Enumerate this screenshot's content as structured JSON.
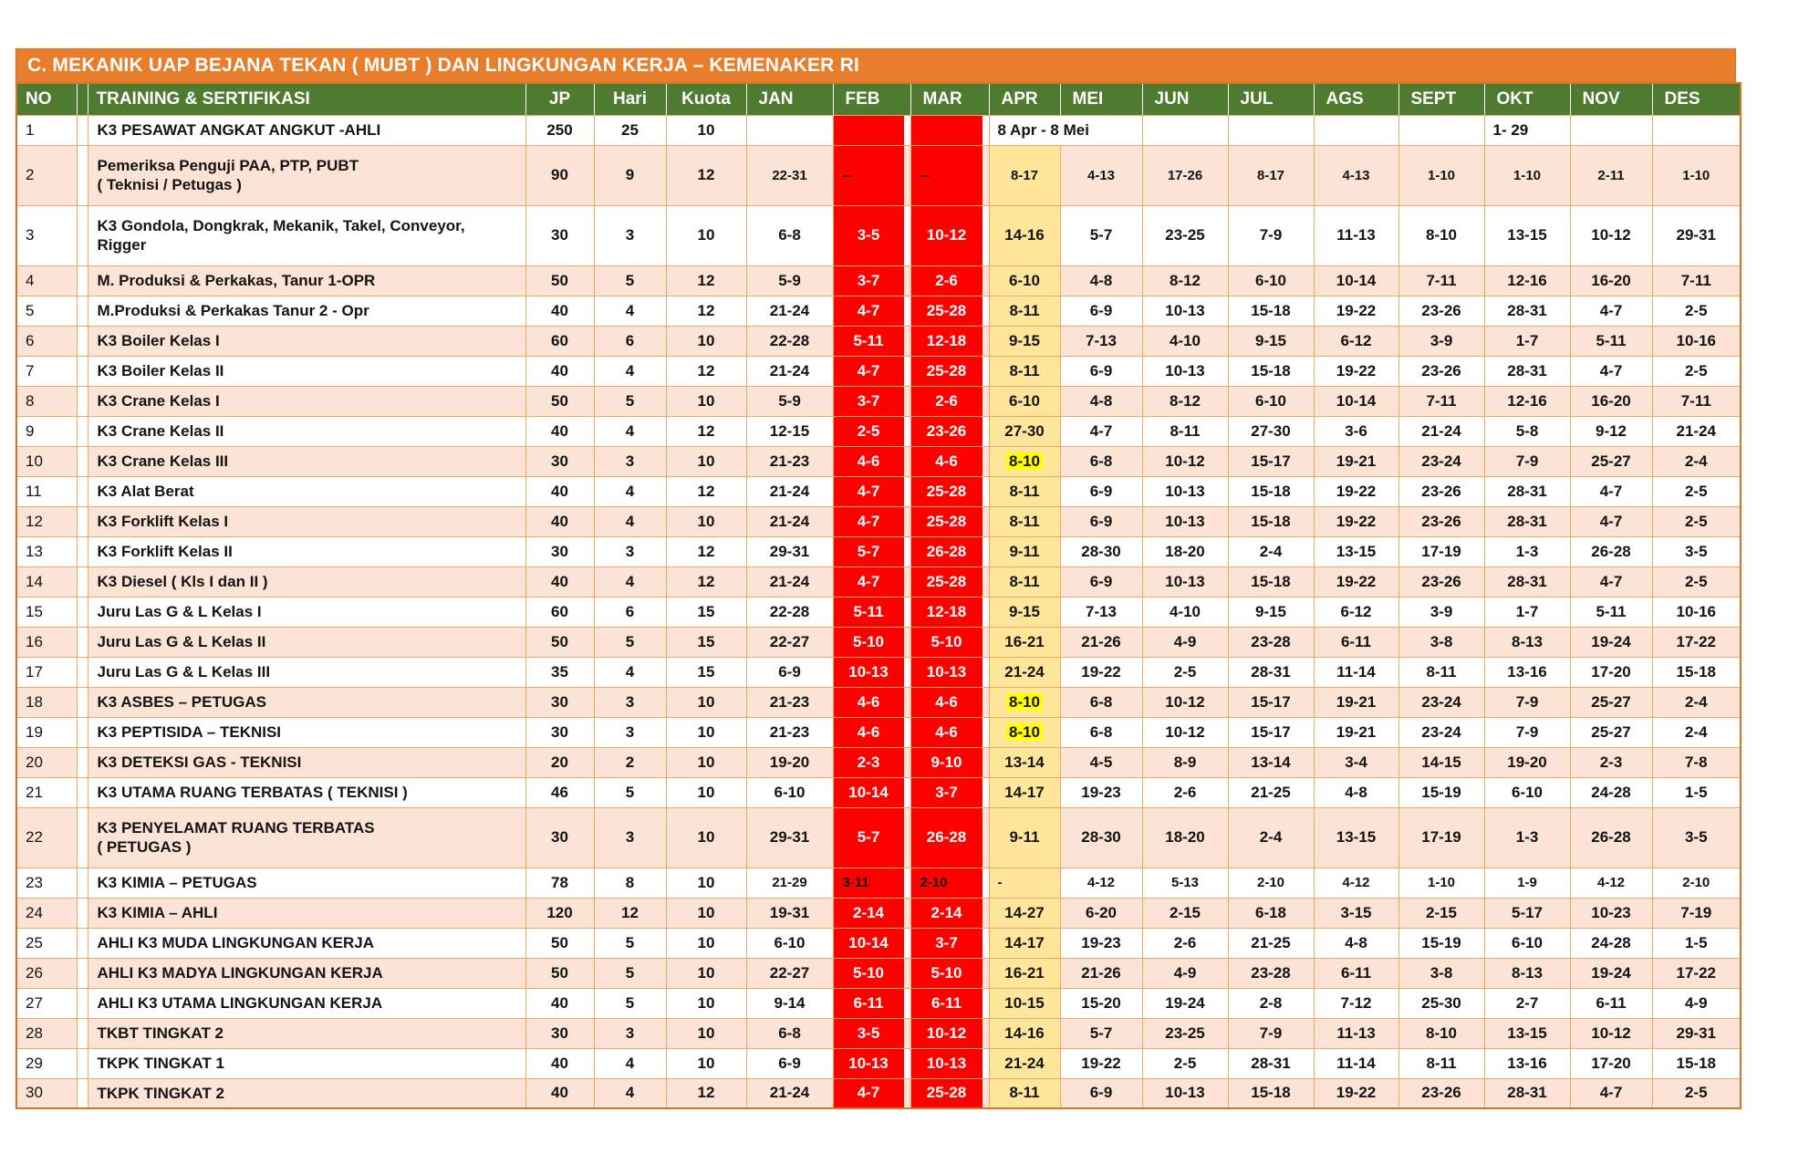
{
  "title": "C. MEKANIK UAP BEJANA TEKAN ( MUBT ) DAN LINGKUNGAN KERJA – KEMENAKER RI",
  "columns": [
    "NO",
    "TRAINING & SERTIFIKASI",
    "JP",
    "Hari",
    "Kuota"
  ],
  "months": [
    "JAN",
    "FEB",
    "MAR",
    "APR",
    "MEI",
    "JUN",
    "JUL",
    "AGS",
    "SEPT",
    "OKT",
    "NOV",
    "DES"
  ],
  "colors": {
    "title_bg": "#E87E2C",
    "header_bg": "#4F7B30",
    "red": "#FE0000",
    "stripe": "#FBE3D5",
    "apr_bg": "#FFE69B",
    "highlight": "#FFFF00",
    "border": "#EFA765",
    "outer": "#DD7321"
  },
  "rows": [
    {
      "no": "1",
      "name": "K3 PESAWAT ANGKAT ANGKUT -AHLI",
      "jp": "250",
      "hari": "25",
      "kuota": "10",
      "cells": [
        "",
        {
          "v": "",
          "bg": "red"
        },
        {
          "v": "",
          "bg": "red"
        },
        {
          "v": "8 Apr - 8 Mei",
          "colspan": 2,
          "bg": "white",
          "align": "left"
        },
        "",
        "",
        "",
        "",
        {
          "v": "1- 29",
          "align": "left"
        },
        "",
        ""
      ]
    },
    {
      "no": "2",
      "name": "Pemeriksa Penguji PAA, PTP, PUBT",
      "name2": "( Teknisi / Petugas )",
      "jp": "90",
      "hari": "9",
      "kuota": "12",
      "sm": true,
      "cells": [
        "22-31",
        {
          "v": "--",
          "bg": "red",
          "fg": "black"
        },
        {
          "v": "--",
          "bg": "red",
          "fg": "black"
        },
        "8-17",
        "4-13",
        "17-26",
        "8-17",
        "4-13",
        "1-10",
        "1-10",
        "2-11",
        "1-10"
      ]
    },
    {
      "no": "3",
      "name": "K3 Gondola, Dongkrak, Mekanik, Takel, Conveyor,",
      "name2": "Rigger",
      "jp": "30",
      "hari": "3",
      "kuota": "10",
      "cells": [
        "6-8",
        {
          "v": "3-5",
          "bg": "red"
        },
        {
          "v": "10-12",
          "bg": "red"
        },
        "14-16",
        "5-7",
        "23-25",
        "7-9",
        "11-13",
        "8-10",
        "13-15",
        "10-12",
        "29-31"
      ]
    },
    {
      "no": "4",
      "name": "M. Produksi & Perkakas, Tanur 1-OPR",
      "jp": "50",
      "hari": "5",
      "kuota": "12",
      "cells": [
        "5-9",
        {
          "v": "3-7",
          "bg": "red"
        },
        {
          "v": "2-6",
          "bg": "red"
        },
        "6-10",
        "4-8",
        "8-12",
        "6-10",
        "10-14",
        "7-11",
        "12-16",
        "16-20",
        "7-11"
      ]
    },
    {
      "no": "5",
      "name": "M.Produksi & Perkakas Tanur 2 - Opr",
      "jp": "40",
      "hari": "4",
      "kuota": "12",
      "cells": [
        "21-24",
        {
          "v": "4-7",
          "bg": "red"
        },
        {
          "v": "25-28",
          "bg": "red"
        },
        "8-11",
        "6-9",
        "10-13",
        "15-18",
        "19-22",
        "23-26",
        "28-31",
        "4-7",
        "2-5"
      ]
    },
    {
      "no": "6",
      "name": "K3 Boiler Kelas I",
      "jp": "60",
      "hari": "6",
      "kuota": "10",
      "cells": [
        "22-28",
        {
          "v": "5-11",
          "bg": "red"
        },
        {
          "v": "12-18",
          "bg": "red"
        },
        "9-15",
        "7-13",
        "4-10",
        "9-15",
        "6-12",
        "3-9",
        "1-7",
        "5-11",
        "10-16"
      ]
    },
    {
      "no": "7",
      "name": "K3 Boiler Kelas II",
      "jp": "40",
      "hari": "4",
      "kuota": "12",
      "cells": [
        "21-24",
        {
          "v": "4-7",
          "bg": "red"
        },
        {
          "v": "25-28",
          "bg": "red"
        },
        "8-11",
        "6-9",
        "10-13",
        "15-18",
        "19-22",
        "23-26",
        "28-31",
        "4-7",
        "2-5"
      ]
    },
    {
      "no": "8",
      "name": "K3 Crane Kelas I",
      "jp": "50",
      "hari": "5",
      "kuota": "10",
      "cells": [
        "5-9",
        {
          "v": "3-7",
          "bg": "red"
        },
        {
          "v": "2-6",
          "bg": "red"
        },
        "6-10",
        "4-8",
        "8-12",
        "6-10",
        "10-14",
        "7-11",
        "12-16",
        "16-20",
        "7-11"
      ]
    },
    {
      "no": "9",
      "name": "K3 Crane Kelas II",
      "jp": "40",
      "hari": "4",
      "kuota": "12",
      "cells": [
        "12-15",
        {
          "v": "2-5",
          "bg": "red"
        },
        {
          "v": "23-26",
          "bg": "red"
        },
        "27-30",
        "4-7",
        "8-11",
        "27-30",
        "3-6",
        "21-24",
        "5-8",
        "9-12",
        "21-24"
      ]
    },
    {
      "no": "10",
      "name": "K3 Crane Kelas III",
      "jp": "30",
      "hari": "3",
      "kuota": "10",
      "cells": [
        "21-23",
        {
          "v": "4-6",
          "bg": "red"
        },
        {
          "v": "4-6",
          "bg": "red"
        },
        {
          "v": "8-10",
          "hl": true
        },
        "6-8",
        "10-12",
        "15-17",
        "19-21",
        "23-24",
        "7-9",
        "25-27",
        "2-4"
      ]
    },
    {
      "no": "11",
      "name": "K3 Alat Berat",
      "jp": "40",
      "hari": "4",
      "kuota": "12",
      "cells": [
        "21-24",
        {
          "v": "4-7",
          "bg": "red"
        },
        {
          "v": "25-28",
          "bg": "red"
        },
        "8-11",
        "6-9",
        "10-13",
        "15-18",
        "19-22",
        "23-26",
        "28-31",
        "4-7",
        "2-5"
      ]
    },
    {
      "no": "12",
      "name": "K3 Forklift Kelas I",
      "jp": "40",
      "hari": "4",
      "kuota": "10",
      "cells": [
        "21-24",
        {
          "v": "4-7",
          "bg": "red"
        },
        {
          "v": "25-28",
          "bg": "red"
        },
        "8-11",
        "6-9",
        "10-13",
        "15-18",
        "19-22",
        "23-26",
        "28-31",
        "4-7",
        "2-5"
      ]
    },
    {
      "no": "13",
      "name": "K3 Forklift Kelas II",
      "jp": "30",
      "hari": "3",
      "kuota": "12",
      "cells": [
        "29-31",
        {
          "v": "5-7",
          "bg": "red"
        },
        {
          "v": "26-28",
          "bg": "red"
        },
        "9-11",
        "28-30",
        "18-20",
        "2-4",
        "13-15",
        "17-19",
        "1-3",
        "26-28",
        "3-5"
      ]
    },
    {
      "no": "14",
      "name": "K3 Diesel ( Kls I dan II )",
      "jp": "40",
      "hari": "4",
      "kuota": "12",
      "cells": [
        "21-24",
        {
          "v": "4-7",
          "bg": "red"
        },
        {
          "v": "25-28",
          "bg": "red"
        },
        "8-11",
        "6-9",
        "10-13",
        "15-18",
        "19-22",
        "23-26",
        "28-31",
        "4-7",
        "2-5"
      ]
    },
    {
      "no": "15",
      "name": "Juru Las G & L Kelas I",
      "jp": "60",
      "hari": "6",
      "kuota": "15",
      "cells": [
        "22-28",
        {
          "v": "5-11",
          "bg": "red"
        },
        {
          "v": "12-18",
          "bg": "red"
        },
        "9-15",
        "7-13",
        "4-10",
        "9-15",
        "6-12",
        "3-9",
        "1-7",
        "5-11",
        "10-16"
      ]
    },
    {
      "no": "16",
      "name": "Juru Las G & L Kelas II",
      "jp": "50",
      "hari": "5",
      "kuota": "15",
      "cells": [
        "22-27",
        {
          "v": "5-10",
          "bg": "red"
        },
        {
          "v": "5-10",
          "bg": "red"
        },
        "16-21",
        "21-26",
        "4-9",
        "23-28",
        "6-11",
        "3-8",
        "8-13",
        "19-24",
        "17-22"
      ]
    },
    {
      "no": "17",
      "name": "Juru Las G & L Kelas III",
      "jp": "35",
      "hari": "4",
      "kuota": "15",
      "cells": [
        "6-9",
        {
          "v": "10-13",
          "bg": "red"
        },
        {
          "v": "10-13",
          "bg": "red"
        },
        "21-24",
        "19-22",
        "2-5",
        "28-31",
        "11-14",
        "8-11",
        "13-16",
        "17-20",
        "15-18"
      ]
    },
    {
      "no": "18",
      "name": "K3 ASBES – PETUGAS",
      "jp": "30",
      "hari": "3",
      "kuota": "10",
      "cells": [
        "21-23",
        {
          "v": "4-6",
          "bg": "red"
        },
        {
          "v": "4-6",
          "bg": "red"
        },
        {
          "v": "8-10",
          "hl": true
        },
        "6-8",
        "10-12",
        "15-17",
        "19-21",
        "23-24",
        "7-9",
        "25-27",
        "2-4"
      ]
    },
    {
      "no": "19",
      "name": "K3 PEPTISIDA – TEKNISI",
      "jp": "30",
      "hari": "3",
      "kuota": "10",
      "cells": [
        "21-23",
        {
          "v": "4-6",
          "bg": "red"
        },
        {
          "v": "4-6",
          "bg": "red"
        },
        {
          "v": "8-10",
          "hl": true
        },
        "6-8",
        "10-12",
        "15-17",
        "19-21",
        "23-24",
        "7-9",
        "25-27",
        "2-4"
      ]
    },
    {
      "no": "20",
      "name": "K3 DETEKSI GAS - TEKNISI",
      "jp": "20",
      "hari": "2",
      "kuota": "10",
      "cells": [
        "19-20",
        {
          "v": "2-3",
          "bg": "red"
        },
        {
          "v": "9-10",
          "bg": "red"
        },
        "13-14",
        "4-5",
        "8-9",
        "13-14",
        "3-4",
        "14-15",
        "19-20",
        "2-3",
        "7-8"
      ]
    },
    {
      "no": "21",
      "name": "K3 UTAMA RUANG TERBATAS ( TEKNISI )",
      "jp": "46",
      "hari": "5",
      "kuota": "10",
      "cells": [
        "6-10",
        {
          "v": "10-14",
          "bg": "red"
        },
        {
          "v": "3-7",
          "bg": "red"
        },
        "14-17",
        "19-23",
        "2-6",
        "21-25",
        "4-8",
        "15-19",
        "6-10",
        "24-28",
        "1-5"
      ]
    },
    {
      "no": "22",
      "name": "K3 PENYELAMAT RUANG TERBATAS",
      "name2": "( PETUGAS )",
      "jp": "30",
      "hari": "3",
      "kuota": "10",
      "cells": [
        "29-31",
        {
          "v": "5-7",
          "bg": "red"
        },
        {
          "v": "26-28",
          "bg": "red"
        },
        "9-11",
        "28-30",
        "18-20",
        "2-4",
        "13-15",
        "17-19",
        "1-3",
        "26-28",
        "3-5"
      ]
    },
    {
      "no": "23",
      "name": "K3 KIMIA – PETUGAS",
      "jp": "78",
      "hari": "8",
      "kuota": "10",
      "sm": true,
      "cells": [
        "21-29",
        {
          "v": "3-11",
          "bg": "red",
          "fg": "black"
        },
        {
          "v": "2-10",
          "bg": "red",
          "fg": "black"
        },
        {
          "v": "-",
          "align": "left"
        },
        "4-12",
        "5-13",
        "2-10",
        "4-12",
        "1-10",
        "1-9",
        "4-12",
        "2-10"
      ]
    },
    {
      "no": "24",
      "name": "K3 KIMIA – AHLI",
      "jp": "120",
      "hari": "12",
      "kuota": "10",
      "cells": [
        "19-31",
        {
          "v": "2-14",
          "bg": "red"
        },
        {
          "v": "2-14",
          "bg": "red"
        },
        "14-27",
        "6-20",
        "2-15",
        "6-18",
        "3-15",
        "2-15",
        "5-17",
        "10-23",
        "7-19"
      ]
    },
    {
      "no": "25",
      "name": "AHLI K3 MUDA LINGKUNGAN KERJA",
      "jp": "50",
      "hari": "5",
      "kuota": "10",
      "cells": [
        "6-10",
        {
          "v": "10-14",
          "bg": "red"
        },
        {
          "v": "3-7",
          "bg": "red"
        },
        "14-17",
        "19-23",
        "2-6",
        "21-25",
        "4-8",
        "15-19",
        "6-10",
        "24-28",
        "1-5"
      ]
    },
    {
      "no": "26",
      "name": "AHLI K3 MADYA LINGKUNGAN KERJA",
      "jp": "50",
      "hari": "5",
      "kuota": "10",
      "cells": [
        "22-27",
        {
          "v": "5-10",
          "bg": "red"
        },
        {
          "v": "5-10",
          "bg": "red"
        },
        "16-21",
        "21-26",
        "4-9",
        "23-28",
        "6-11",
        "3-8",
        "8-13",
        "19-24",
        "17-22"
      ]
    },
    {
      "no": "27",
      "name": "AHLI K3 UTAMA LINGKUNGAN KERJA",
      "jp": "40",
      "hari": "5",
      "kuota": "10",
      "cells": [
        "9-14",
        {
          "v": "6-11",
          "bg": "red"
        },
        {
          "v": "6-11",
          "bg": "red"
        },
        "10-15",
        "15-20",
        "19-24",
        "2-8",
        "7-12",
        "25-30",
        "2-7",
        "6-11",
        "4-9"
      ]
    },
    {
      "no": "28",
      "name": "TKBT TINGKAT 2",
      "jp": "30",
      "hari": "3",
      "kuota": "10",
      "cells": [
        "6-8",
        {
          "v": "3-5",
          "bg": "red"
        },
        {
          "v": "10-12",
          "bg": "red"
        },
        "14-16",
        "5-7",
        "23-25",
        "7-9",
        "11-13",
        "8-10",
        "13-15",
        "10-12",
        "29-31"
      ]
    },
    {
      "no": "29",
      "name": "TKPK TINGKAT 1",
      "jp": "40",
      "hari": "4",
      "kuota": "10",
      "cells": [
        "6-9",
        {
          "v": "10-13",
          "bg": "red"
        },
        {
          "v": "10-13",
          "bg": "red"
        },
        "21-24",
        "19-22",
        "2-5",
        "28-31",
        "11-14",
        "8-11",
        "13-16",
        "17-20",
        "15-18"
      ]
    },
    {
      "no": "30",
      "name": "TKPK TINGKAT 2",
      "jp": "40",
      "hari": "4",
      "kuota": "12",
      "cells": [
        "21-24",
        {
          "v": "4-7",
          "bg": "red"
        },
        {
          "v": "25-28",
          "bg": "red"
        },
        "8-11",
        "6-9",
        "10-13",
        "15-18",
        "19-22",
        "23-26",
        "28-31",
        "4-7",
        "2-5"
      ]
    }
  ]
}
